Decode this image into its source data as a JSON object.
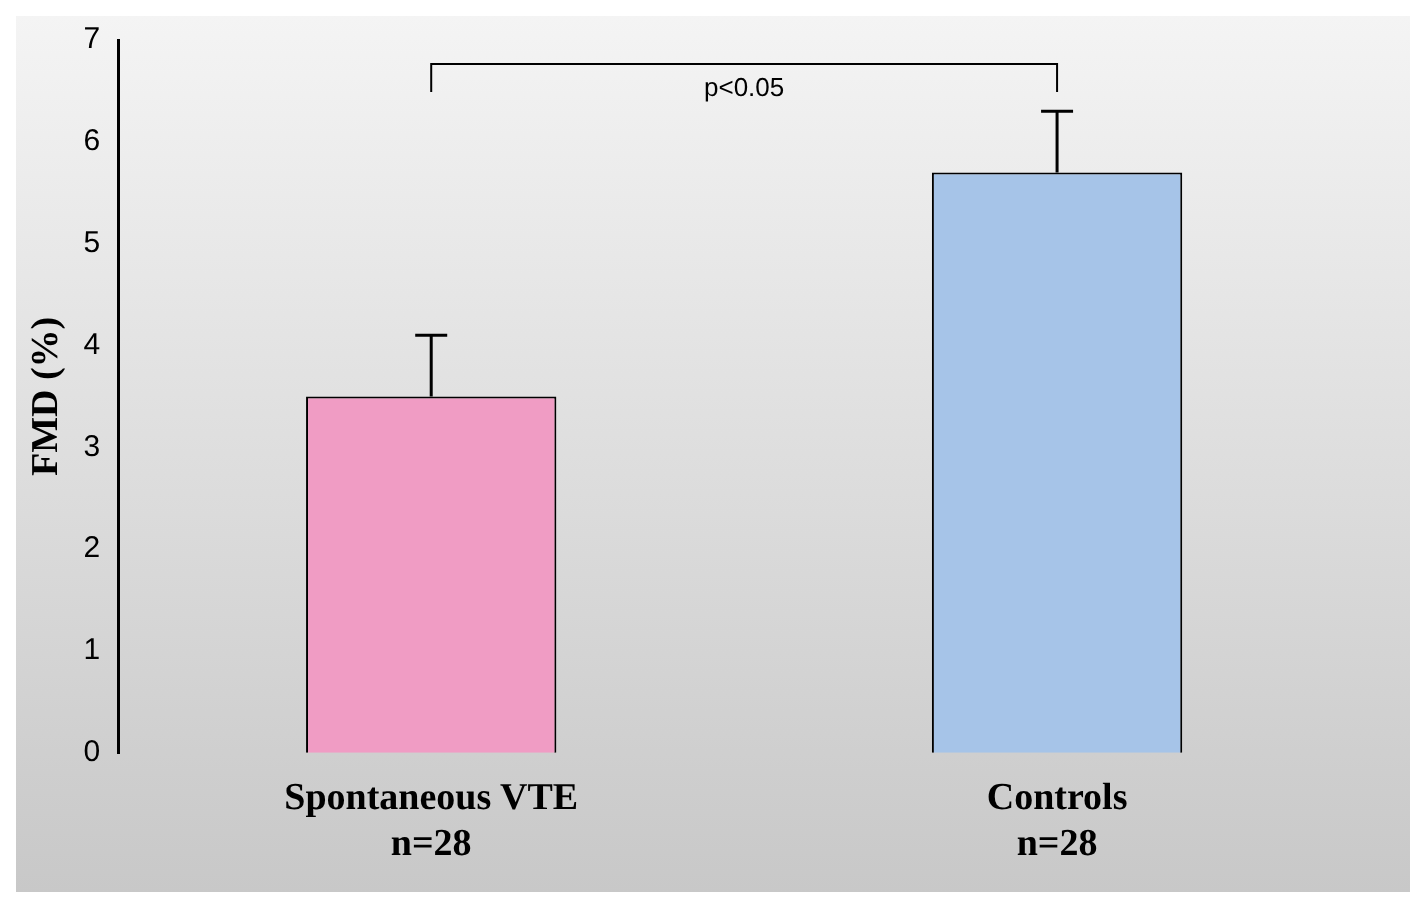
{
  "chart_data": {
    "type": "bar",
    "ylabel": "FMD (%)",
    "categories": [
      "Spontaneous VTE\nn=28",
      "Controls\nn=28"
    ],
    "values": [
      3.5,
      5.7
    ],
    "colors": [
      "#f09cc4",
      "#a6c4e8"
    ],
    "errors": [
      [
        3.5,
        4.1
      ],
      [
        5.7,
        6.3
      ]
    ],
    "ylim": [
      0,
      7
    ],
    "yticks": [
      0,
      1,
      2,
      3,
      4,
      5,
      6,
      7
    ],
    "grid": false,
    "legend": false,
    "annotations": [
      "p<0.05"
    ]
  }
}
